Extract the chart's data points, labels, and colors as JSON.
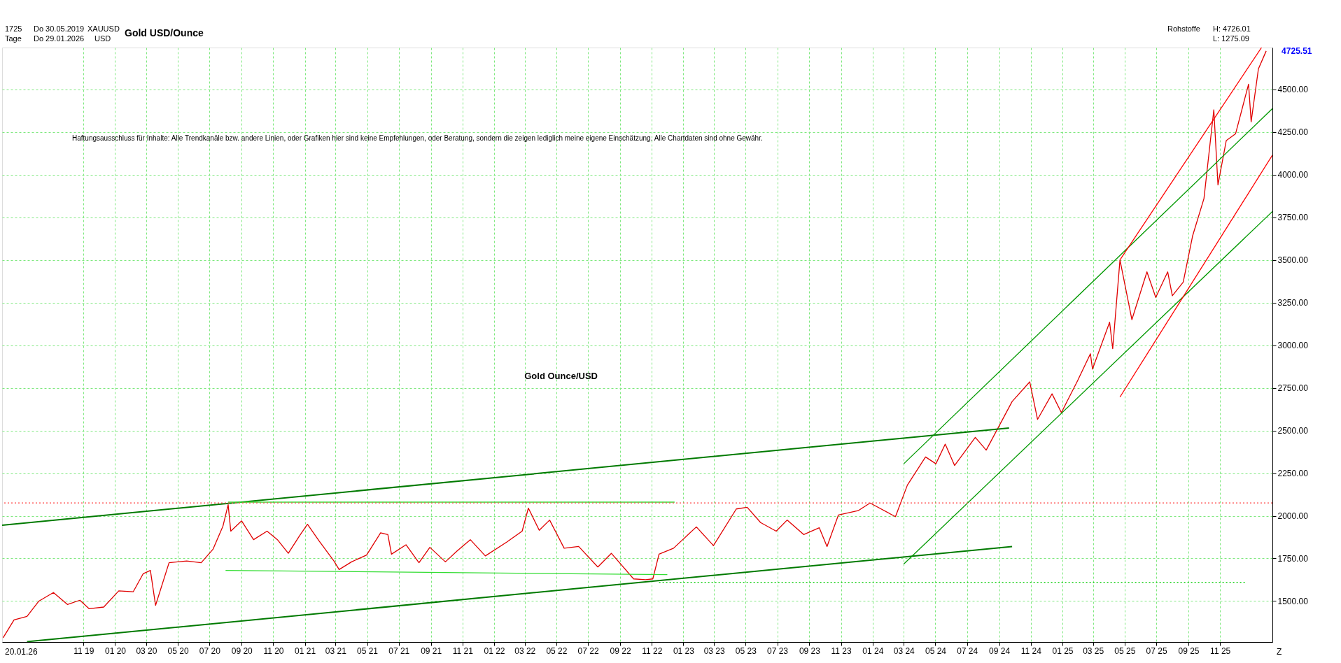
{
  "chart_data": {
    "type": "line",
    "title": "Gold USD/Ounce",
    "annotations": [
      "Haftungsausschluss für Inhalte: Alle Trendkanäle bzw. andere Linien, oder Grafiken hier sind keine Empfehlungen, oder Beratung, sondern die zeigen lediglich meine eigene Einschätzung. Alle Chartdaten sind ohne Gewähr.",
      "Gold Ounce/USD",
      "1725",
      "Tage",
      "Do 30.05.2019",
      "Do 29.01.2026",
      "XAUUSD",
      "USD",
      "Rohstoffe",
      "H: 4726.01",
      "L: 1275.09",
      {
        "text": "4725.51",
        "x": "2026-01-29",
        "y": 4725.51
      },
      "20.01.26",
      "Z"
    ],
    "xlim": [
      "2019-05-28",
      "2026-02-10"
    ],
    "xticks": [
      {
        "value": "2019-11-01",
        "label": "11 19"
      },
      {
        "value": "2020-01-01",
        "label": "01 20"
      },
      {
        "value": "2020-03-01",
        "label": "03 20"
      },
      {
        "value": "2020-05-01",
        "label": "05 20"
      },
      {
        "value": "2020-07-01",
        "label": "07 20"
      },
      {
        "value": "2020-09-01",
        "label": "09 20"
      },
      {
        "value": "2020-11-01",
        "label": "11 20"
      },
      {
        "value": "2021-01-01",
        "label": "01 21"
      },
      {
        "value": "2021-03-01",
        "label": "03 21"
      },
      {
        "value": "2021-05-01",
        "label": "05 21"
      },
      {
        "value": "2021-07-01",
        "label": "07 21"
      },
      {
        "value": "2021-09-01",
        "label": "09 21"
      },
      {
        "value": "2021-11-01",
        "label": "11 21"
      },
      {
        "value": "2022-01-01",
        "label": "01 22"
      },
      {
        "value": "2022-03-01",
        "label": "03 22"
      },
      {
        "value": "2022-05-01",
        "label": "05 22"
      },
      {
        "value": "2022-07-01",
        "label": "07 22"
      },
      {
        "value": "2022-09-01",
        "label": "09 22"
      },
      {
        "value": "2022-11-01",
        "label": "11 22"
      },
      {
        "value": "2023-01-01",
        "label": "01 23"
      },
      {
        "value": "2023-03-01",
        "label": "03 23"
      },
      {
        "value": "2023-05-01",
        "label": "05 23"
      },
      {
        "value": "2023-07-01",
        "label": "07 23"
      },
      {
        "value": "2023-09-01",
        "label": "09 23"
      },
      {
        "value": "2023-11-01",
        "label": "11 23"
      },
      {
        "value": "2024-01-01",
        "label": "01 24"
      },
      {
        "value": "2024-03-01",
        "label": "03 24"
      },
      {
        "value": "2024-05-01",
        "label": "05 24"
      },
      {
        "value": "2024-07-01",
        "label": "07 24"
      },
      {
        "value": "2024-09-01",
        "label": "09 24"
      },
      {
        "value": "2024-11-01",
        "label": "11 24"
      },
      {
        "value": "2025-01-01",
        "label": "01 25"
      },
      {
        "value": "2025-03-01",
        "label": "03 25"
      },
      {
        "value": "2025-05-01",
        "label": "05 25"
      },
      {
        "value": "2025-07-01",
        "label": "07 25"
      },
      {
        "value": "2025-09-01",
        "label": "09 25"
      },
      {
        "value": "2025-11-01",
        "label": "11 25"
      }
    ],
    "ylim": [
      1260,
      4745
    ],
    "yticks": [
      {
        "value": 1500,
        "label": "1500.00"
      },
      {
        "value": 1750,
        "label": "1750.00"
      },
      {
        "value": 2000,
        "label": "2000.00"
      },
      {
        "value": 2250,
        "label": "2250.00"
      },
      {
        "value": 2500,
        "label": "2500.00"
      },
      {
        "value": 2750,
        "label": "2750.00"
      },
      {
        "value": 3000,
        "label": "3000.00"
      },
      {
        "value": 3250,
        "label": "3250.00"
      },
      {
        "value": 3500,
        "label": "3500.00"
      },
      {
        "value": 3750,
        "label": "3750.00"
      },
      {
        "value": 4000,
        "label": "4000.00"
      },
      {
        "value": 4250,
        "label": "4250.00"
      },
      {
        "value": 4500,
        "label": "4500.00"
      }
    ],
    "grid": true,
    "marker": "none",
    "line_style": "solid",
    "ref_lines": [
      {
        "axis": "y",
        "value": 2075,
        "label": null,
        "color": "#ff4040",
        "line_style": "dotted"
      }
    ],
    "series": [
      {
        "color": "#e00000",
        "x": [
          "2019-05-30",
          "2019-06-20",
          "2019-07-15",
          "2019-08-07",
          "2019-09-04",
          "2019-10-01",
          "2019-10-25",
          "2019-11-12",
          "2019-12-10",
          "2020-01-08",
          "2020-02-05",
          "2020-02-24",
          "2020-03-09",
          "2020-03-19",
          "2020-04-14",
          "2020-05-18",
          "2020-06-15",
          "2020-07-08",
          "2020-07-27",
          "2020-08-06",
          "2020-08-11",
          "2020-09-01",
          "2020-09-24",
          "2020-10-20",
          "2020-11-09",
          "2020-11-30",
          "2020-12-21",
          "2021-01-06",
          "2021-01-29",
          "2021-02-26",
          "2021-03-08",
          "2021-04-01",
          "2021-04-30",
          "2021-05-27",
          "2021-06-10",
          "2021-06-17",
          "2021-07-15",
          "2021-08-09",
          "2021-08-30",
          "2021-09-29",
          "2021-10-22",
          "2021-11-16",
          "2021-12-15",
          "2022-01-25",
          "2022-02-24",
          "2022-03-08",
          "2022-03-29",
          "2022-04-18",
          "2022-05-16",
          "2022-06-13",
          "2022-07-20",
          "2022-08-15",
          "2022-09-27",
          "2022-10-20",
          "2022-11-03",
          "2022-11-15",
          "2022-12-13",
          "2023-01-26",
          "2023-02-28",
          "2023-04-13",
          "2023-05-04",
          "2023-05-30",
          "2023-06-29",
          "2023-07-20",
          "2023-08-21",
          "2023-09-20",
          "2023-10-05",
          "2023-10-27",
          "2023-12-04",
          "2023-12-27",
          "2024-02-14",
          "2024-03-08",
          "2024-04-12",
          "2024-05-02",
          "2024-05-20",
          "2024-06-07",
          "2024-07-17",
          "2024-08-07",
          "2024-09-26",
          "2024-10-30",
          "2024-11-14",
          "2024-12-12",
          "2024-12-30",
          "2025-01-30",
          "2025-02-24",
          "2025-02-28",
          "2025-04-02",
          "2025-04-08",
          "2025-04-22",
          "2025-05-15",
          "2025-06-13",
          "2025-06-30",
          "2025-07-23",
          "2025-08-01",
          "2025-08-22",
          "2025-09-09",
          "2025-10-01",
          "2025-10-20",
          "2025-10-28",
          "2025-11-13",
          "2025-12-01",
          "2025-12-26",
          "2025-12-31",
          "2026-01-14",
          "2026-01-29"
        ],
        "values": [
          1285,
          1390,
          1410,
          1500,
          1550,
          1480,
          1505,
          1455,
          1465,
          1560,
          1555,
          1660,
          1680,
          1475,
          1725,
          1735,
          1725,
          1805,
          1940,
          2065,
          1910,
          1970,
          1860,
          1910,
          1860,
          1780,
          1880,
          1950,
          1850,
          1735,
          1685,
          1730,
          1770,
          1900,
          1890,
          1775,
          1830,
          1725,
          1815,
          1730,
          1795,
          1860,
          1765,
          1845,
          1910,
          2045,
          1915,
          1975,
          1810,
          1820,
          1700,
          1780,
          1630,
          1625,
          1630,
          1775,
          1810,
          1935,
          1825,
          2040,
          2050,
          1960,
          1910,
          1975,
          1890,
          1930,
          1820,
          2005,
          2030,
          2075,
          1995,
          2180,
          2345,
          2305,
          2420,
          2295,
          2460,
          2385,
          2670,
          2785,
          2565,
          2715,
          2605,
          2790,
          2950,
          2860,
          3135,
          2980,
          3500,
          3150,
          3430,
          3280,
          3430,
          3290,
          3370,
          3640,
          3860,
          4380,
          3940,
          4200,
          4240,
          4530,
          4310,
          4620,
          4725
        ]
      },
      {
        "color": "#007a00",
        "x": [
          "2019-05-28",
          "2024-09-20"
        ],
        "values": [
          1945,
          2515
        ]
      },
      {
        "color": "#007a00",
        "x": [
          "2019-07-15",
          "2024-09-26"
        ],
        "values": [
          1262,
          1820
        ]
      },
      {
        "color": "#33dd33",
        "x": [
          "2020-08-06",
          "2022-12-15"
        ],
        "values": [
          2080,
          2080
        ]
      },
      {
        "color": "#33dd33",
        "x": [
          "2020-08-01",
          "2022-12-01"
        ],
        "values": [
          1680,
          1655
        ]
      },
      {
        "color": "#009900",
        "x": [
          "2024-03-01",
          "2026-02-10"
        ],
        "values": [
          2305,
          4387
        ]
      },
      {
        "color": "#009900",
        "x": [
          "2024-03-01",
          "2026-02-10"
        ],
        "values": [
          1717,
          3784
        ]
      },
      {
        "color": "#ff0000",
        "x": [
          "2025-04-22",
          "2026-01-20"
        ],
        "values": [
          3500,
          4745
        ]
      },
      {
        "color": "#ff0000",
        "x": [
          "2025-04-22",
          "2026-02-10"
        ],
        "values": [
          2696,
          4114
        ]
      },
      {
        "color": "#00cc00",
        "line_style": "dotted",
        "x": [
          "2022-11-15",
          "2025-12-20"
        ],
        "values": [
          1610,
          1610
        ]
      }
    ]
  }
}
